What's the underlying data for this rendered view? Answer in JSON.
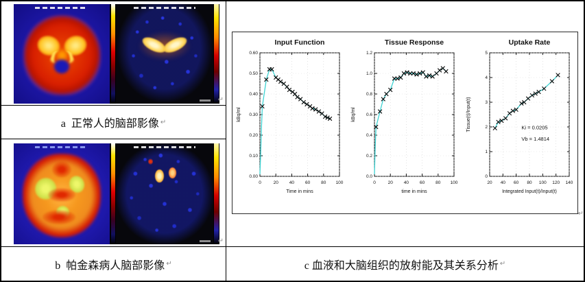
{
  "document": {
    "pilcrow": "↵",
    "captions": {
      "a": "a  正常人的脑部影像",
      "b": "b  帕金森病人脑部影像",
      "c": "c 血液和大脑组织的放射能及其关系分析"
    }
  },
  "figures": {
    "brain_a": {
      "description": "normal-brain-pet-scan-pair"
    },
    "brain_b": {
      "description": "parkinson-brain-pet-scan-pair"
    },
    "pet_colorbar_colors": [
      "#ffffff",
      "#ffe400",
      "#ff8800",
      "#d40000",
      "#700000",
      "#2222aa",
      "#000000"
    ]
  },
  "chart_data": [
    {
      "type": "line",
      "title": "Input Function",
      "xlabel": "Time in mins",
      "ylabel": "kBq/ml",
      "xmin": 0,
      "xmax": 100,
      "xstep": 20,
      "xdec": 0,
      "ymin": 0,
      "ymax": 0.6,
      "ystep": 0.1,
      "ydec": 2,
      "line_color": "#3ed3d3",
      "marker": "x",
      "prefix": [
        [
          0,
          0.01
        ],
        [
          1,
          0.12
        ],
        [
          2,
          0.24
        ]
      ],
      "points": [
        [
          3,
          0.34
        ],
        [
          8,
          0.47
        ],
        [
          12,
          0.52
        ],
        [
          15,
          0.52
        ],
        [
          20,
          0.48
        ],
        [
          23,
          0.47
        ],
        [
          26,
          0.46
        ],
        [
          30,
          0.45
        ],
        [
          34,
          0.435
        ],
        [
          37,
          0.42
        ],
        [
          41,
          0.41
        ],
        [
          44,
          0.4
        ],
        [
          47,
          0.385
        ],
        [
          51,
          0.375
        ],
        [
          55,
          0.36
        ],
        [
          59,
          0.35
        ],
        [
          63,
          0.34
        ],
        [
          66,
          0.33
        ],
        [
          70,
          0.325
        ],
        [
          74,
          0.315
        ],
        [
          78,
          0.305
        ],
        [
          82,
          0.29
        ],
        [
          85,
          0.285
        ],
        [
          88,
          0.28
        ]
      ]
    },
    {
      "type": "line",
      "title": "Tissue Response",
      "xlabel": "time in mins",
      "ylabel": "kBq/ml",
      "xmin": 0,
      "xmax": 100,
      "xstep": 20,
      "xdec": 0,
      "ymin": 0,
      "ymax": 1.2,
      "ystep": 0.2,
      "ydec": 1,
      "line_color": "#3ed3d3",
      "marker": "x",
      "prefix": [
        [
          0,
          0.02
        ],
        [
          1,
          0.3
        ]
      ],
      "points": [
        [
          2,
          0.48
        ],
        [
          7,
          0.63
        ],
        [
          11,
          0.75
        ],
        [
          15,
          0.8
        ],
        [
          20,
          0.84
        ],
        [
          25,
          0.95
        ],
        [
          29,
          0.95
        ],
        [
          33,
          0.96
        ],
        [
          37,
          1.0
        ],
        [
          41,
          1.01
        ],
        [
          45,
          1.0
        ],
        [
          49,
          1.0
        ],
        [
          53,
          0.99
        ],
        [
          57,
          1.0
        ],
        [
          61,
          1.01
        ],
        [
          65,
          0.97
        ],
        [
          69,
          0.98
        ],
        [
          73,
          0.97
        ],
        [
          78,
          1.0
        ],
        [
          82,
          1.03
        ],
        [
          86,
          1.05
        ],
        [
          90,
          1.02
        ]
      ]
    },
    {
      "type": "scatter",
      "title": "Uptake Rate",
      "xlabel": "Integrated Input(t)/Input(t)",
      "ylabel": "Tissue(t)/Input(t)",
      "xmin": 20,
      "xmax": 140,
      "xstep": 20,
      "xdec": 0,
      "ymin": 0,
      "ymax": 5,
      "ystep": 1,
      "ydec": 0,
      "line_color": "#3ed3d3",
      "marker": "x",
      "points": [
        [
          28,
          1.95
        ],
        [
          33,
          2.2
        ],
        [
          38,
          2.25
        ],
        [
          44,
          2.35
        ],
        [
          50,
          2.55
        ],
        [
          55,
          2.65
        ],
        [
          60,
          2.7
        ],
        [
          68,
          2.95
        ],
        [
          72,
          3.0
        ],
        [
          78,
          3.15
        ],
        [
          84,
          3.28
        ],
        [
          89,
          3.35
        ],
        [
          94,
          3.42
        ],
        [
          102,
          3.55
        ],
        [
          114,
          3.85
        ],
        [
          123,
          4.1
        ]
      ],
      "annotations": [
        {
          "text": "Ki = 0.0205",
          "fx": 0.4,
          "fy": 0.62
        },
        {
          "text": "Vb = 1.4814",
          "fx": 0.4,
          "fy": 0.71
        }
      ]
    }
  ]
}
